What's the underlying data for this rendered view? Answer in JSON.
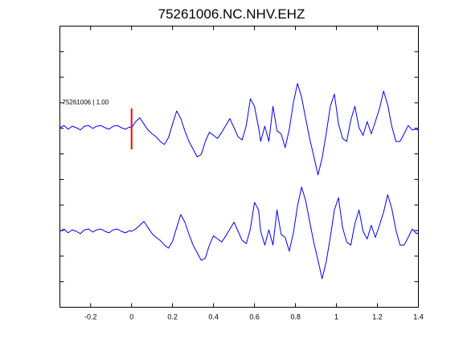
{
  "chart_data": {
    "type": "line",
    "title": "75261006.NC.NHV.EHZ",
    "xlabel": "",
    "ylabel": "",
    "xlim": [
      -0.35,
      1.4
    ],
    "x_ticks": [
      -0.2,
      0,
      0.2,
      0.4,
      0.6,
      0.8,
      1,
      1.2,
      1.4
    ],
    "x_tick_labels": [
      "-0.2",
      "0",
      "0.2",
      "0.4",
      "0.6",
      "0.8",
      "1",
      "1.2",
      "1.4"
    ],
    "ylim": [
      -1,
      1
    ],
    "grid": false,
    "colors": {
      "trace": "#0000ff",
      "pick": "#ff0000",
      "axes": "#000000"
    },
    "trace_label": "75261006 | 1.00",
    "pick_time": 0,
    "x": [
      -0.35,
      -0.33,
      -0.31,
      -0.29,
      -0.27,
      -0.25,
      -0.23,
      -0.21,
      -0.19,
      -0.17,
      -0.15,
      -0.13,
      -0.11,
      -0.09,
      -0.07,
      -0.05,
      -0.03,
      -0.01,
      0.0,
      0.02,
      0.04,
      0.06,
      0.08,
      0.1,
      0.12,
      0.14,
      0.16,
      0.18,
      0.2,
      0.22,
      0.24,
      0.26,
      0.28,
      0.3,
      0.32,
      0.34,
      0.36,
      0.38,
      0.4,
      0.42,
      0.44,
      0.46,
      0.48,
      0.5,
      0.52,
      0.54,
      0.56,
      0.58,
      0.6,
      0.62,
      0.63,
      0.65,
      0.67,
      0.69,
      0.71,
      0.73,
      0.75,
      0.77,
      0.79,
      0.81,
      0.83,
      0.85,
      0.87,
      0.89,
      0.91,
      0.93,
      0.95,
      0.97,
      0.99,
      1.01,
      1.03,
      1.05,
      1.07,
      1.09,
      1.11,
      1.13,
      1.15,
      1.17,
      1.19,
      1.21,
      1.23,
      1.25,
      1.27,
      1.29,
      1.31,
      1.33,
      1.35,
      1.37,
      1.39,
      1.4
    ],
    "series": [
      {
        "values": [
          0.0,
          0.03,
          -0.02,
          0.02,
          0.0,
          -0.03,
          0.02,
          0.03,
          -0.01,
          0.02,
          0.03,
          0.0,
          -0.02,
          0.02,
          0.03,
          0.0,
          -0.02,
          0.01,
          0.0,
          0.08,
          0.13,
          0.05,
          -0.03,
          -0.08,
          -0.12,
          -0.18,
          -0.22,
          -0.13,
          0.05,
          0.22,
          0.12,
          -0.04,
          -0.18,
          -0.28,
          -0.38,
          -0.35,
          -0.18,
          -0.06,
          -0.1,
          -0.14,
          -0.06,
          0.03,
          0.12,
          0.0,
          -0.12,
          -0.16,
          0.03,
          0.38,
          0.28,
          0.0,
          -0.18,
          0.02,
          -0.18,
          0.28,
          -0.04,
          -0.08,
          -0.26,
          -0.02,
          0.33,
          0.58,
          0.4,
          0.12,
          -0.15,
          -0.38,
          -0.62,
          -0.4,
          -0.08,
          0.28,
          0.44,
          0.05,
          -0.14,
          -0.18,
          0.1,
          0.28,
          0.0,
          -0.1,
          0.08,
          -0.08,
          0.08,
          0.25,
          0.48,
          0.3,
          0.02,
          -0.18,
          -0.18,
          -0.08,
          0.03,
          -0.03,
          -0.02,
          -0.03
        ]
      },
      {
        "values": [
          0.0,
          0.03,
          -0.02,
          0.02,
          0.0,
          -0.03,
          0.02,
          0.03,
          -0.01,
          0.02,
          0.03,
          0.0,
          -0.02,
          0.02,
          0.03,
          0.0,
          -0.02,
          0.01,
          0.0,
          0.03,
          0.08,
          0.13,
          0.05,
          -0.03,
          -0.08,
          -0.12,
          -0.18,
          -0.22,
          -0.13,
          0.05,
          0.22,
          0.12,
          -0.04,
          -0.18,
          -0.28,
          -0.38,
          -0.35,
          -0.18,
          -0.06,
          -0.1,
          -0.14,
          -0.06,
          0.03,
          0.12,
          0.0,
          -0.12,
          -0.16,
          0.03,
          0.38,
          0.28,
          0.0,
          -0.18,
          0.02,
          -0.18,
          0.28,
          -0.04,
          -0.08,
          -0.26,
          -0.02,
          0.33,
          0.58,
          0.4,
          0.12,
          -0.15,
          -0.38,
          -0.62,
          -0.4,
          -0.08,
          0.28,
          0.44,
          0.05,
          -0.14,
          -0.18,
          0.1,
          0.28,
          0.0,
          -0.1,
          0.08,
          -0.08,
          0.08,
          0.25,
          0.48,
          0.3,
          0.02,
          -0.18,
          -0.18,
          -0.08,
          0.03,
          -0.03,
          -0.02
        ]
      }
    ]
  }
}
